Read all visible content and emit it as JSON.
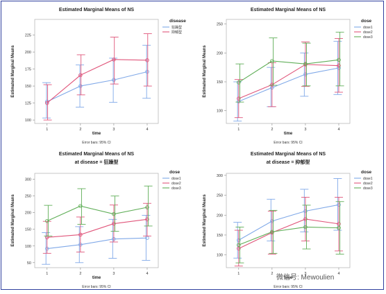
{
  "watermark": "微信号: Mewoulien",
  "charts": [
    {
      "type": "line",
      "title": "Estimated Marginal Means of NS",
      "subtitle": "",
      "xlabel": "time",
      "ylabel": "Estimated Marginal Means",
      "footnote": "Error bars: 95% CI",
      "legend_title": "disease",
      "legend_position": "top-right",
      "x": [
        "1",
        "2",
        "3",
        "4"
      ],
      "yticks": [
        "100",
        "125",
        "150",
        "175",
        "200",
        "225"
      ],
      "ylim": [
        95,
        248
      ],
      "series": [
        {
          "name": "狂躁型",
          "color": "#7fa8e8",
          "values": [
            127,
            150,
            159,
            171
          ],
          "lower": [
            103,
            119,
            126,
            132
          ],
          "upper": [
            155,
            181,
            191,
            210
          ]
        },
        {
          "name": "抑郁型",
          "color": "#e0557a",
          "values": [
            125,
            166,
            189,
            188
          ],
          "lower": [
            100,
            137,
            153,
            150
          ],
          "upper": [
            152,
            196,
            222,
            227
          ]
        }
      ]
    },
    {
      "type": "line",
      "title": "Estimated Marginal Means of NS",
      "subtitle": "",
      "xlabel": "time",
      "ylabel": "Estimated Marginal Means",
      "footnote": "Error bars: 95% CI",
      "legend_title": "dose",
      "legend_position": "top-right",
      "x": [
        "1",
        "2",
        "3",
        "4"
      ],
      "yticks": [
        "100",
        "150",
        "200",
        "250"
      ],
      "ylim": [
        78,
        258
      ],
      "series": [
        {
          "name": "dose1",
          "color": "#7fa8e8",
          "values": [
            116,
            140,
            163,
            174
          ],
          "lower": [
            82,
            107,
            125,
            128
          ],
          "upper": [
            150,
            175,
            200,
            220
          ]
        },
        {
          "name": "dose2",
          "color": "#e0557a",
          "values": [
            121,
            145,
            180,
            178
          ],
          "lower": [
            88,
            107,
            142,
            132
          ],
          "upper": [
            154,
            183,
            219,
            225
          ]
        },
        {
          "name": "dose3",
          "color": "#5fae57",
          "values": [
            149,
            186,
            181,
            188
          ],
          "lower": [
            115,
            144,
            143,
            143
          ],
          "upper": [
            181,
            226,
            217,
            236
          ]
        }
      ]
    },
    {
      "type": "line",
      "title": "Estimated Marginal Means of NS",
      "subtitle": "at disease = 狂躁型",
      "xlabel": "time",
      "ylabel": "Estimated Marginal Means",
      "footnote": "Error bars: 95% CI",
      "legend_title": "dose",
      "legend_position": "top-right",
      "x": [
        "1",
        "2",
        "3",
        "4"
      ],
      "yticks": [
        "50",
        "100",
        "150",
        "200",
        "250",
        "300"
      ],
      "ylim": [
        35,
        318
      ],
      "series": [
        {
          "name": "dose1",
          "color": "#7fa8e8",
          "values": [
            92,
            104,
            121,
            124
          ],
          "lower": [
            45,
            50,
            63,
            57
          ],
          "upper": [
            140,
            158,
            180,
            192
          ]
        },
        {
          "name": "dose2",
          "color": "#e0557a",
          "values": [
            126,
            134,
            167,
            180
          ],
          "lower": [
            78,
            82,
            112,
            130
          ],
          "upper": [
            174,
            187,
            223,
            228
          ]
        },
        {
          "name": "dose3",
          "color": "#5fae57",
          "values": [
            175,
            220,
            196,
            216
          ],
          "lower": [
            130,
            165,
            144,
            160
          ],
          "upper": [
            222,
            272,
            250,
            280
          ]
        }
      ]
    },
    {
      "type": "line",
      "title": "Estimated Marginal Means of NS",
      "subtitle": "at disease = 抑郁型",
      "xlabel": "time",
      "ylabel": "Estimated Marginal Means",
      "footnote": "Error bars: 95% CI",
      "legend_title": "dose",
      "legend_position": "top-right",
      "x": [
        "1",
        "2",
        "3",
        "4"
      ],
      "yticks": [
        "100",
        "150",
        "200",
        "250",
        "300"
      ],
      "ylim": [
        68,
        305
      ],
      "series": [
        {
          "name": "dose1",
          "color": "#7fa8e8",
          "values": [
            137,
            185,
            210,
            226
          ],
          "lower": [
            92,
            135,
            158,
            162
          ],
          "upper": [
            182,
            240,
            265,
            292
          ]
        },
        {
          "name": "dose2",
          "color": "#e0557a",
          "values": [
            116,
            156,
            190,
            178
          ],
          "lower": [
            72,
            102,
            135,
            110
          ],
          "upper": [
            162,
            210,
            245,
            245
          ]
        },
        {
          "name": "dose3",
          "color": "#5fae57",
          "values": [
            125,
            158,
            170,
            168
          ],
          "lower": [
            80,
            104,
            115,
            102
          ],
          "upper": [
            170,
            212,
            225,
            234
          ]
        }
      ]
    }
  ]
}
